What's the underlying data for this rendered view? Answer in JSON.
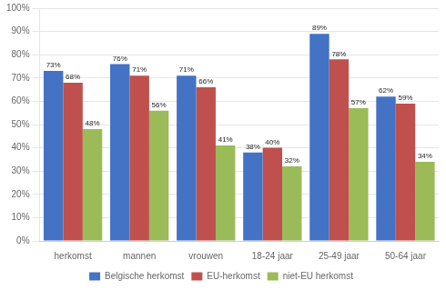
{
  "chart_data": {
    "type": "bar",
    "categories": [
      "herkomst",
      "mannen",
      "vrouwen",
      "18-24 jaar",
      "25-49 jaar",
      "50-64 jaar"
    ],
    "series": [
      {
        "name": "Belgische herkomst",
        "color": "#4472C4",
        "values": [
          73,
          76,
          71,
          38,
          89,
          62
        ],
        "value_labels": [
          "73%",
          "76%",
          "71%",
          "38%",
          "89%",
          "62%"
        ]
      },
      {
        "name": "EU-herkomst",
        "color": "#C0504D",
        "values": [
          68,
          71,
          66,
          40,
          78,
          59
        ],
        "value_labels": [
          "68%",
          "71%",
          "66%",
          "40%",
          "78%",
          "59%"
        ]
      },
      {
        "name": "niet-EU herkomst",
        "color": "#9BBB59",
        "values": [
          48,
          56,
          41,
          32,
          57,
          34
        ],
        "value_labels": [
          "48%",
          "56%",
          "41%",
          "32%",
          "57%",
          "34%"
        ]
      }
    ],
    "ylim": [
      0,
      100
    ],
    "yticks": [
      {
        "value": 0,
        "label": "0%"
      },
      {
        "value": 10,
        "label": "10%"
      },
      {
        "value": 20,
        "label": "20%"
      },
      {
        "value": 30,
        "label": "30%"
      },
      {
        "value": 40,
        "label": "40%"
      },
      {
        "value": 50,
        "label": "50%"
      },
      {
        "value": 60,
        "label": "60%"
      },
      {
        "value": 70,
        "label": "70%"
      },
      {
        "value": 80,
        "label": "80%"
      },
      {
        "value": 90,
        "label": "90%"
      },
      {
        "value": 100,
        "label": "100%"
      }
    ],
    "grid": true,
    "legend": "bottom",
    "data_labels": true
  }
}
